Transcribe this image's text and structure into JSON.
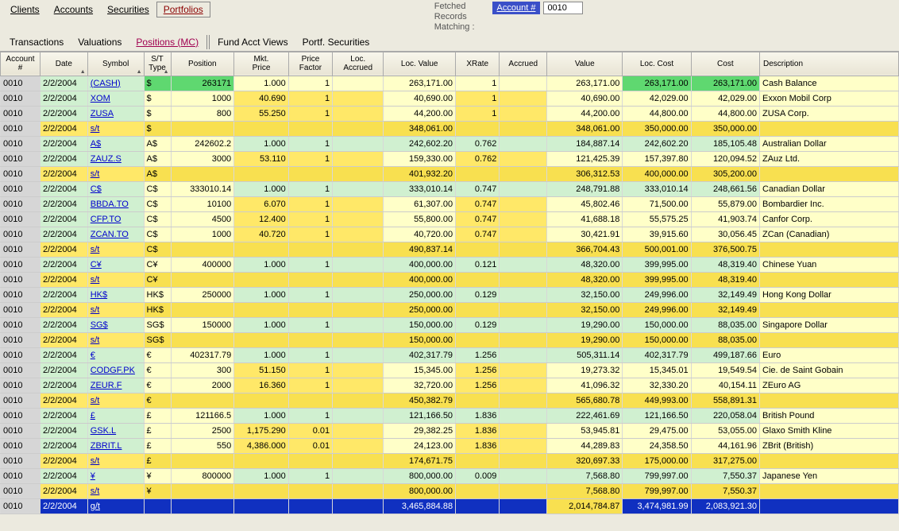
{
  "topTabs": [
    "Clients",
    "Accounts",
    "Securities",
    "Portfolios"
  ],
  "activeTopTab": 3,
  "subTabs": [
    "Transactions",
    "Valuations",
    "Positions (MC)",
    "Fund Acct Views",
    "Portf. Securities"
  ],
  "activeSubTab": 2,
  "info": {
    "line1": "Fetched",
    "line2": "Records",
    "line3": "Matching :"
  },
  "accountBadge": {
    "label": "Account #",
    "value": "0010"
  },
  "headers": [
    {
      "k": "acct",
      "label": "Account\n#",
      "w": "col-acct"
    },
    {
      "k": "date",
      "label": "Date",
      "w": "col-date",
      "sort": true
    },
    {
      "k": "sym",
      "label": "Symbol",
      "w": "col-sym",
      "sort": true
    },
    {
      "k": "st",
      "label": "S/T\nType",
      "w": "col-st",
      "sort": true
    },
    {
      "k": "pos",
      "label": "Position",
      "w": "col-pos"
    },
    {
      "k": "mkt",
      "label": "Mkt.\nPrice",
      "w": "col-mkt"
    },
    {
      "k": "pf",
      "label": "Price\nFactor",
      "w": "col-pf"
    },
    {
      "k": "la",
      "label": "Loc.\nAccrued",
      "w": "col-la"
    },
    {
      "k": "lv",
      "label": "Loc. Value",
      "w": "col-lv"
    },
    {
      "k": "xr",
      "label": "XRate",
      "w": "col-xr"
    },
    {
      "k": "ac",
      "label": "Accrued",
      "w": "col-ac"
    },
    {
      "k": "val",
      "label": "Value",
      "w": "col-val"
    },
    {
      "k": "lc",
      "label": "Loc. Cost",
      "w": "col-lc"
    },
    {
      "k": "cost",
      "label": "Cost",
      "w": "col-cost"
    },
    {
      "k": "desc",
      "label": "Description",
      "w": "col-desc"
    }
  ],
  "colors": {
    "acctCell": "#d6d6d6",
    "mint": "#d0f0d0",
    "mintBright": "#5fd870",
    "pale": "#ffffc8",
    "yellow": "#ffe868",
    "yellowDeep": "#f8e050",
    "subtotal": "#f8e050",
    "grandBlue": "#1030c0",
    "grandBlueText": "#ffffff",
    "link": "#0000cc"
  },
  "rows": [
    {
      "type": "data",
      "acct": "0010",
      "date": "2/2/2004",
      "sym": "(CASH)",
      "st": "$",
      "pos": "263171",
      "mkt": "1.000",
      "pf": "1",
      "la": "",
      "lv": "263,171.00",
      "xr": "1",
      "ac": "",
      "val": "263,171.00",
      "lc": "263,171.00",
      "cost": "263,171.00",
      "desc": "Cash Balance",
      "bg": {
        "date": "mint",
        "sym": "mint",
        "st": "mintBright",
        "pos": "mintBright",
        "mkt": "pale",
        "pf": "pale",
        "la": "pale",
        "lv": "pale",
        "xr": "pale",
        "ac": "pale",
        "val": "pale",
        "lc": "mintBright",
        "cost": "mintBright",
        "desc": "pale"
      }
    },
    {
      "type": "data",
      "acct": "0010",
      "date": "2/2/2004",
      "sym": "XOM",
      "st": "$",
      "pos": "1000",
      "mkt": "40.690",
      "pf": "1",
      "la": "",
      "lv": "40,690.00",
      "xr": "1",
      "ac": "",
      "val": "40,690.00",
      "lc": "42,029.00",
      "cost": "42,029.00",
      "desc": "Exxon Mobil Corp",
      "bg": {
        "date": "mint",
        "sym": "mint",
        "st": "pale",
        "pos": "pale",
        "mkt": "yellow",
        "pf": "yellow",
        "la": "yellow",
        "lv": "pale",
        "xr": "yellow",
        "ac": "yellow",
        "val": "pale",
        "lc": "pale",
        "cost": "pale",
        "desc": "pale"
      }
    },
    {
      "type": "data",
      "acct": "0010",
      "date": "2/2/2004",
      "sym": "ZUSA",
      "st": "$",
      "pos": "800",
      "mkt": "55.250",
      "pf": "1",
      "la": "",
      "lv": "44,200.00",
      "xr": "1",
      "ac": "",
      "val": "44,200.00",
      "lc": "44,800.00",
      "cost": "44,800.00",
      "desc": "ZUSA Corp.",
      "bg": {
        "date": "mint",
        "sym": "mint",
        "st": "pale",
        "pos": "pale",
        "mkt": "yellow",
        "pf": "yellow",
        "la": "yellow",
        "lv": "pale",
        "xr": "yellow",
        "ac": "yellow",
        "val": "pale",
        "lc": "pale",
        "cost": "pale",
        "desc": "pale"
      }
    },
    {
      "type": "sub",
      "acct": "0010",
      "date": "2/2/2004",
      "sym": "s/t",
      "st": "$",
      "pos": "",
      "mkt": "",
      "pf": "",
      "la": "",
      "lv": "348,061.00",
      "xr": "",
      "ac": "",
      "val": "348,061.00",
      "lc": "350,000.00",
      "cost": "350,000.00",
      "desc": ""
    },
    {
      "type": "data",
      "acct": "0010",
      "date": "2/2/2004",
      "sym": "A$",
      "st": "A$",
      "pos": "242602.2",
      "mkt": "1.000",
      "pf": "1",
      "la": "",
      "lv": "242,602.20",
      "xr": "0.762",
      "ac": "",
      "val": "184,887.14",
      "lc": "242,602.20",
      "cost": "185,105.48",
      "desc": "Australian Dollar",
      "bg": {
        "date": "mint",
        "sym": "mint",
        "st": "pale",
        "pos": "pale",
        "mkt": "mint",
        "pf": "mint",
        "la": "mint",
        "lv": "mint",
        "xr": "mint",
        "ac": "mint",
        "val": "mint",
        "lc": "mint",
        "cost": "mint",
        "desc": "pale"
      }
    },
    {
      "type": "data",
      "acct": "0010",
      "date": "2/2/2004",
      "sym": "ZAUZ.S",
      "st": "A$",
      "pos": "3000",
      "mkt": "53.110",
      "pf": "1",
      "la": "",
      "lv": "159,330.00",
      "xr": "0.762",
      "ac": "",
      "val": "121,425.39",
      "lc": "157,397.80",
      "cost": "120,094.52",
      "desc": "ZAuz Ltd.",
      "bg": {
        "date": "mint",
        "sym": "mint",
        "st": "pale",
        "pos": "pale",
        "mkt": "yellow",
        "pf": "yellow",
        "la": "yellow",
        "lv": "pale",
        "xr": "yellow",
        "ac": "yellow",
        "val": "pale",
        "lc": "pale",
        "cost": "pale",
        "desc": "pale"
      }
    },
    {
      "type": "sub",
      "acct": "0010",
      "date": "2/2/2004",
      "sym": "s/t",
      "st": "A$",
      "pos": "",
      "mkt": "",
      "pf": "",
      "la": "",
      "lv": "401,932.20",
      "xr": "",
      "ac": "",
      "val": "306,312.53",
      "lc": "400,000.00",
      "cost": "305,200.00",
      "desc": ""
    },
    {
      "type": "data",
      "acct": "0010",
      "date": "2/2/2004",
      "sym": "C$",
      "st": "C$",
      "pos": "333010.14",
      "mkt": "1.000",
      "pf": "1",
      "la": "",
      "lv": "333,010.14",
      "xr": "0.747",
      "ac": "",
      "val": "248,791.88",
      "lc": "333,010.14",
      "cost": "248,661.56",
      "desc": "Canadian Dollar",
      "bg": {
        "date": "mint",
        "sym": "mint",
        "st": "pale",
        "pos": "pale",
        "mkt": "mint",
        "pf": "mint",
        "la": "mint",
        "lv": "mint",
        "xr": "mint",
        "ac": "mint",
        "val": "mint",
        "lc": "mint",
        "cost": "mint",
        "desc": "pale"
      }
    },
    {
      "type": "data",
      "acct": "0010",
      "date": "2/2/2004",
      "sym": "BBDA.TO",
      "st": "C$",
      "pos": "10100",
      "mkt": "6.070",
      "pf": "1",
      "la": "",
      "lv": "61,307.00",
      "xr": "0.747",
      "ac": "",
      "val": "45,802.46",
      "lc": "71,500.00",
      "cost": "55,879.00",
      "desc": "Bombardier Inc.",
      "bg": {
        "date": "mint",
        "sym": "mint",
        "st": "pale",
        "pos": "pale",
        "mkt": "yellow",
        "pf": "yellow",
        "la": "yellow",
        "lv": "pale",
        "xr": "yellow",
        "ac": "yellow",
        "val": "pale",
        "lc": "pale",
        "cost": "pale",
        "desc": "pale"
      }
    },
    {
      "type": "data",
      "acct": "0010",
      "date": "2/2/2004",
      "sym": "CFP.TO",
      "st": "C$",
      "pos": "4500",
      "mkt": "12.400",
      "pf": "1",
      "la": "",
      "lv": "55,800.00",
      "xr": "0.747",
      "ac": "",
      "val": "41,688.18",
      "lc": "55,575.25",
      "cost": "41,903.74",
      "desc": "Canfor Corp.",
      "bg": {
        "date": "mint",
        "sym": "mint",
        "st": "pale",
        "pos": "pale",
        "mkt": "yellow",
        "pf": "yellow",
        "la": "yellow",
        "lv": "pale",
        "xr": "yellow",
        "ac": "yellow",
        "val": "pale",
        "lc": "pale",
        "cost": "pale",
        "desc": "pale"
      }
    },
    {
      "type": "data",
      "acct": "0010",
      "date": "2/2/2004",
      "sym": "ZCAN.TO",
      "st": "C$",
      "pos": "1000",
      "mkt": "40.720",
      "pf": "1",
      "la": "",
      "lv": "40,720.00",
      "xr": "0.747",
      "ac": "",
      "val": "30,421.91",
      "lc": "39,915.60",
      "cost": "30,056.45",
      "desc": "ZCan (Canadian)",
      "bg": {
        "date": "mint",
        "sym": "mint",
        "st": "pale",
        "pos": "pale",
        "mkt": "yellow",
        "pf": "yellow",
        "la": "yellow",
        "lv": "pale",
        "xr": "yellow",
        "ac": "yellow",
        "val": "pale",
        "lc": "pale",
        "cost": "pale",
        "desc": "pale"
      }
    },
    {
      "type": "sub",
      "acct": "0010",
      "date": "2/2/2004",
      "sym": "s/t",
      "st": "C$",
      "pos": "",
      "mkt": "",
      "pf": "",
      "la": "",
      "lv": "490,837.14",
      "xr": "",
      "ac": "",
      "val": "366,704.43",
      "lc": "500,001.00",
      "cost": "376,500.75",
      "desc": ""
    },
    {
      "type": "data",
      "acct": "0010",
      "date": "2/2/2004",
      "sym": "C¥",
      "st": "C¥",
      "pos": "400000",
      "mkt": "1.000",
      "pf": "1",
      "la": "",
      "lv": "400,000.00",
      "xr": "0.121",
      "ac": "",
      "val": "48,320.00",
      "lc": "399,995.00",
      "cost": "48,319.40",
      "desc": "Chinese Yuan",
      "bg": {
        "date": "mint",
        "sym": "mint",
        "st": "pale",
        "pos": "pale",
        "mkt": "mint",
        "pf": "mint",
        "la": "mint",
        "lv": "mint",
        "xr": "mint",
        "ac": "mint",
        "val": "mint",
        "lc": "mint",
        "cost": "mint",
        "desc": "pale"
      }
    },
    {
      "type": "sub",
      "acct": "0010",
      "date": "2/2/2004",
      "sym": "s/t",
      "st": "C¥",
      "pos": "",
      "mkt": "",
      "pf": "",
      "la": "",
      "lv": "400,000.00",
      "xr": "",
      "ac": "",
      "val": "48,320.00",
      "lc": "399,995.00",
      "cost": "48,319.40",
      "desc": ""
    },
    {
      "type": "data",
      "acct": "0010",
      "date": "2/2/2004",
      "sym": "HK$",
      "st": "HK$",
      "pos": "250000",
      "mkt": "1.000",
      "pf": "1",
      "la": "",
      "lv": "250,000.00",
      "xr": "0.129",
      "ac": "",
      "val": "32,150.00",
      "lc": "249,996.00",
      "cost": "32,149.49",
      "desc": "Hong Kong Dollar",
      "bg": {
        "date": "mint",
        "sym": "mint",
        "st": "pale",
        "pos": "pale",
        "mkt": "mint",
        "pf": "mint",
        "la": "mint",
        "lv": "mint",
        "xr": "mint",
        "ac": "mint",
        "val": "mint",
        "lc": "mint",
        "cost": "mint",
        "desc": "pale"
      }
    },
    {
      "type": "sub",
      "acct": "0010",
      "date": "2/2/2004",
      "sym": "s/t",
      "st": "HK$",
      "pos": "",
      "mkt": "",
      "pf": "",
      "la": "",
      "lv": "250,000.00",
      "xr": "",
      "ac": "",
      "val": "32,150.00",
      "lc": "249,996.00",
      "cost": "32,149.49",
      "desc": ""
    },
    {
      "type": "data",
      "acct": "0010",
      "date": "2/2/2004",
      "sym": "SG$",
      "st": "SG$",
      "pos": "150000",
      "mkt": "1.000",
      "pf": "1",
      "la": "",
      "lv": "150,000.00",
      "xr": "0.129",
      "ac": "",
      "val": "19,290.00",
      "lc": "150,000.00",
      "cost": "88,035.00",
      "desc": "Singapore Dollar",
      "bg": {
        "date": "mint",
        "sym": "mint",
        "st": "pale",
        "pos": "pale",
        "mkt": "mint",
        "pf": "mint",
        "la": "mint",
        "lv": "mint",
        "xr": "mint",
        "ac": "mint",
        "val": "mint",
        "lc": "mint",
        "cost": "mint",
        "desc": "pale"
      }
    },
    {
      "type": "sub",
      "acct": "0010",
      "date": "2/2/2004",
      "sym": "s/t",
      "st": "SG$",
      "pos": "",
      "mkt": "",
      "pf": "",
      "la": "",
      "lv": "150,000.00",
      "xr": "",
      "ac": "",
      "val": "19,290.00",
      "lc": "150,000.00",
      "cost": "88,035.00",
      "desc": ""
    },
    {
      "type": "data",
      "acct": "0010",
      "date": "2/2/2004",
      "sym": "€",
      "st": "€",
      "pos": "402317.79",
      "mkt": "1.000",
      "pf": "1",
      "la": "",
      "lv": "402,317.79",
      "xr": "1.256",
      "ac": "",
      "val": "505,311.14",
      "lc": "402,317.79",
      "cost": "499,187.66",
      "desc": "Euro",
      "bg": {
        "date": "mint",
        "sym": "mint",
        "st": "pale",
        "pos": "pale",
        "mkt": "mint",
        "pf": "mint",
        "la": "mint",
        "lv": "mint",
        "xr": "mint",
        "ac": "mint",
        "val": "mint",
        "lc": "mint",
        "cost": "mint",
        "desc": "pale"
      }
    },
    {
      "type": "data",
      "acct": "0010",
      "date": "2/2/2004",
      "sym": "CODGF.PK",
      "st": "€",
      "pos": "300",
      "mkt": "51.150",
      "pf": "1",
      "la": "",
      "lv": "15,345.00",
      "xr": "1.256",
      "ac": "",
      "val": "19,273.32",
      "lc": "15,345.01",
      "cost": "19,549.54",
      "desc": "Cie. de Saint Gobain",
      "bg": {
        "date": "mint",
        "sym": "mint",
        "st": "pale",
        "pos": "pale",
        "mkt": "yellow",
        "pf": "yellow",
        "la": "yellow",
        "lv": "pale",
        "xr": "yellow",
        "ac": "yellow",
        "val": "pale",
        "lc": "pale",
        "cost": "pale",
        "desc": "pale"
      }
    },
    {
      "type": "data",
      "acct": "0010",
      "date": "2/2/2004",
      "sym": "ZEUR.F",
      "st": "€",
      "pos": "2000",
      "mkt": "16.360",
      "pf": "1",
      "la": "",
      "lv": "32,720.00",
      "xr": "1.256",
      "ac": "",
      "val": "41,096.32",
      "lc": "32,330.20",
      "cost": "40,154.11",
      "desc": "ZEuro AG",
      "bg": {
        "date": "mint",
        "sym": "mint",
        "st": "pale",
        "pos": "pale",
        "mkt": "yellow",
        "pf": "yellow",
        "la": "yellow",
        "lv": "pale",
        "xr": "yellow",
        "ac": "yellow",
        "val": "pale",
        "lc": "pale",
        "cost": "pale",
        "desc": "pale"
      }
    },
    {
      "type": "sub",
      "acct": "0010",
      "date": "2/2/2004",
      "sym": "s/t",
      "st": "€",
      "pos": "",
      "mkt": "",
      "pf": "",
      "la": "",
      "lv": "450,382.79",
      "xr": "",
      "ac": "",
      "val": "565,680.78",
      "lc": "449,993.00",
      "cost": "558,891.31",
      "desc": ""
    },
    {
      "type": "data",
      "acct": "0010",
      "date": "2/2/2004",
      "sym": "£",
      "st": "£",
      "pos": "121166.5",
      "mkt": "1.000",
      "pf": "1",
      "la": "",
      "lv": "121,166.50",
      "xr": "1.836",
      "ac": "",
      "val": "222,461.69",
      "lc": "121,166.50",
      "cost": "220,058.04",
      "desc": "British Pound",
      "bg": {
        "date": "mint",
        "sym": "mint",
        "st": "pale",
        "pos": "pale",
        "mkt": "mint",
        "pf": "mint",
        "la": "mint",
        "lv": "mint",
        "xr": "mint",
        "ac": "mint",
        "val": "mint",
        "lc": "mint",
        "cost": "mint",
        "desc": "pale"
      }
    },
    {
      "type": "data",
      "acct": "0010",
      "date": "2/2/2004",
      "sym": "GSK.L",
      "st": "£",
      "pos": "2500",
      "mkt": "1,175.290",
      "pf": "0.01",
      "la": "",
      "lv": "29,382.25",
      "xr": "1.836",
      "ac": "",
      "val": "53,945.81",
      "lc": "29,475.00",
      "cost": "53,055.00",
      "desc": "Glaxo Smith Kline",
      "bg": {
        "date": "mint",
        "sym": "mint",
        "st": "pale",
        "pos": "pale",
        "mkt": "yellow",
        "pf": "yellow",
        "la": "yellow",
        "lv": "pale",
        "xr": "yellow",
        "ac": "yellow",
        "val": "pale",
        "lc": "pale",
        "cost": "pale",
        "desc": "pale"
      }
    },
    {
      "type": "data",
      "acct": "0010",
      "date": "2/2/2004",
      "sym": "ZBRIT.L",
      "st": "£",
      "pos": "550",
      "mkt": "4,386.000",
      "pf": "0.01",
      "la": "",
      "lv": "24,123.00",
      "xr": "1.836",
      "ac": "",
      "val": "44,289.83",
      "lc": "24,358.50",
      "cost": "44,161.96",
      "desc": "ZBrit (British)",
      "bg": {
        "date": "mint",
        "sym": "mint",
        "st": "pale",
        "pos": "pale",
        "mkt": "yellow",
        "pf": "yellow",
        "la": "yellow",
        "lv": "pale",
        "xr": "yellow",
        "ac": "yellow",
        "val": "pale",
        "lc": "pale",
        "cost": "pale",
        "desc": "pale"
      }
    },
    {
      "type": "sub",
      "acct": "0010",
      "date": "2/2/2004",
      "sym": "s/t",
      "st": "£",
      "pos": "",
      "mkt": "",
      "pf": "",
      "la": "",
      "lv": "174,671.75",
      "xr": "",
      "ac": "",
      "val": "320,697.33",
      "lc": "175,000.00",
      "cost": "317,275.00",
      "desc": ""
    },
    {
      "type": "data",
      "acct": "0010",
      "date": "2/2/2004",
      "sym": "¥",
      "st": "¥",
      "pos": "800000",
      "mkt": "1.000",
      "pf": "1",
      "la": "",
      "lv": "800,000.00",
      "xr": "0.009",
      "ac": "",
      "val": "7,568.80",
      "lc": "799,997.00",
      "cost": "7,550.37",
      "desc": "Japanese Yen",
      "bg": {
        "date": "mint",
        "sym": "mint",
        "st": "pale",
        "pos": "pale",
        "mkt": "mint",
        "pf": "mint",
        "la": "mint",
        "lv": "mint",
        "xr": "mint",
        "ac": "mint",
        "val": "mint",
        "lc": "mint",
        "cost": "mint",
        "desc": "pale"
      }
    },
    {
      "type": "sub",
      "acct": "0010",
      "date": "2/2/2004",
      "sym": "s/t",
      "st": "¥",
      "pos": "",
      "mkt": "",
      "pf": "",
      "la": "",
      "lv": "800,000.00",
      "xr": "",
      "ac": "",
      "val": "7,568.80",
      "lc": "799,997.00",
      "cost": "7,550.37",
      "desc": ""
    },
    {
      "type": "grand",
      "acct": "0010",
      "date": "2/2/2004",
      "sym": "g/t",
      "st": "",
      "pos": "",
      "mkt": "",
      "pf": "",
      "la": "",
      "lv": "3,465,884.88",
      "xr": "",
      "ac": "",
      "val": "2,014,784.87",
      "lc": "3,474,981.99",
      "cost": "2,083,921.30",
      "desc": ""
    }
  ]
}
